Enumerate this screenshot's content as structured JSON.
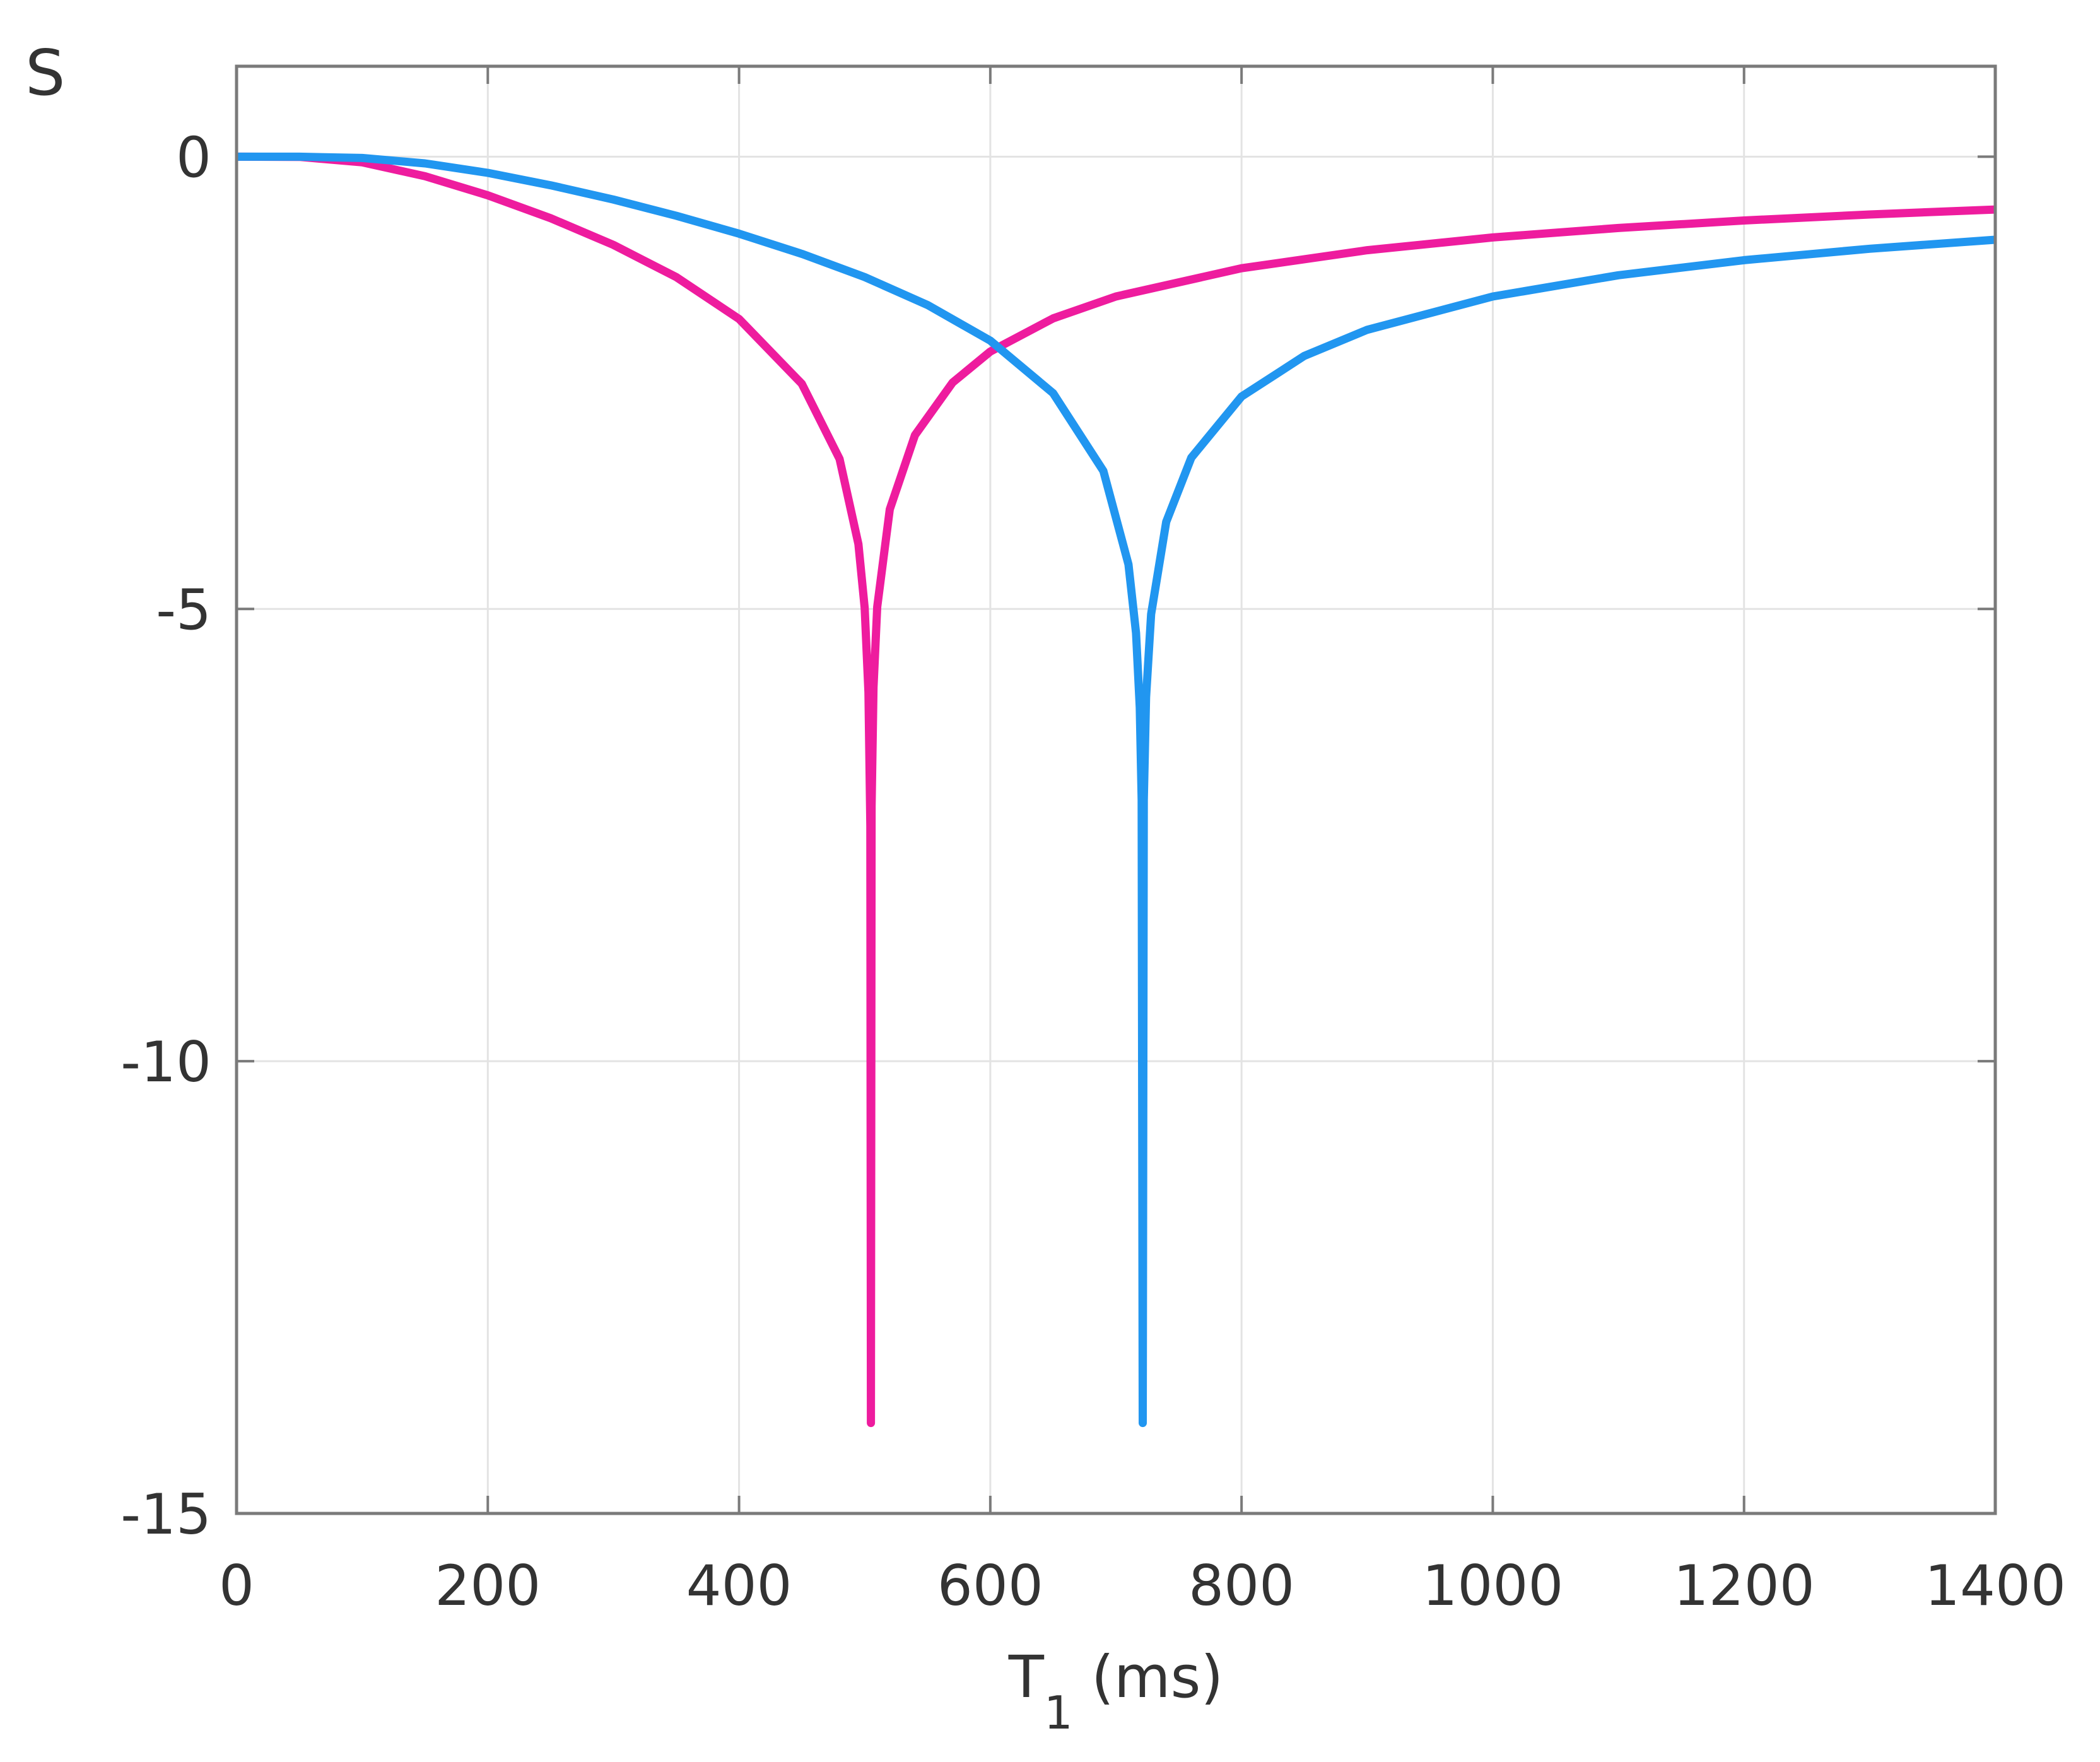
{
  "chart_data": {
    "type": "line",
    "title": "",
    "ylabel": "S",
    "xlabel_main": "T",
    "xlabel_sub": "1",
    "xlabel_unit": " (ms)",
    "xlim": [
      0,
      1400
    ],
    "ylim": [
      -15,
      1
    ],
    "xticks": [
      0,
      200,
      400,
      600,
      800,
      1000,
      1200,
      1400
    ],
    "xtick_labels": [
      "0",
      "200",
      "400",
      "600",
      "800",
      "1000",
      "1200",
      "1400"
    ],
    "yticks": [
      0,
      -5,
      -10,
      -15
    ],
    "ytick_labels": [
      "0",
      "-5",
      "-10",
      "-15"
    ],
    "grid": true,
    "legend": "none",
    "series": [
      {
        "color": "#ee1c9e",
        "x": [
          0,
          50,
          100,
          150,
          200,
          250,
          300,
          350,
          400,
          450,
          480,
          495,
          500,
          503,
          504.5,
          504.94,
          505.5,
          507,
          510,
          520,
          540,
          570,
          600,
          650,
          700,
          800,
          900,
          1000,
          1100,
          1200,
          1300,
          1400
        ],
        "y": [
          0,
          -0.002,
          -0.062,
          -0.216,
          -0.427,
          -0.68,
          -0.975,
          -1.331,
          -1.794,
          -2.511,
          -3.341,
          -4.283,
          -4.987,
          -5.92,
          -7.4,
          -14,
          -7.18,
          -5.87,
          -4.977,
          -3.899,
          -3.079,
          -2.497,
          -2.154,
          -1.788,
          -1.546,
          -1.233,
          -1.034,
          -0.893,
          -0.788,
          -0.705,
          -0.639,
          -0.584
        ]
      },
      {
        "color": "#2196f0",
        "x": [
          0,
          50,
          100,
          150,
          200,
          250,
          300,
          350,
          400,
          450,
          500,
          550,
          600,
          650,
          690,
          710,
          716,
          719,
          720.5,
          721.35,
          722.2,
          724,
          728,
          740,
          760,
          800,
          850,
          900,
          1000,
          1100,
          1200,
          1300,
          1400
        ],
        "y": [
          0,
          0,
          -0.014,
          -0.074,
          -0.179,
          -0.316,
          -0.474,
          -0.653,
          -0.851,
          -1.074,
          -1.331,
          -1.639,
          -2.034,
          -2.614,
          -3.474,
          -4.508,
          -5.267,
          -6.09,
          -7.11,
          -14,
          -7.11,
          -5.976,
          -5.058,
          -4.038,
          -3.328,
          -2.652,
          -2.202,
          -1.914,
          -1.546,
          -1.311,
          -1.144,
          -1.018,
          -0.918
        ]
      }
    ]
  }
}
